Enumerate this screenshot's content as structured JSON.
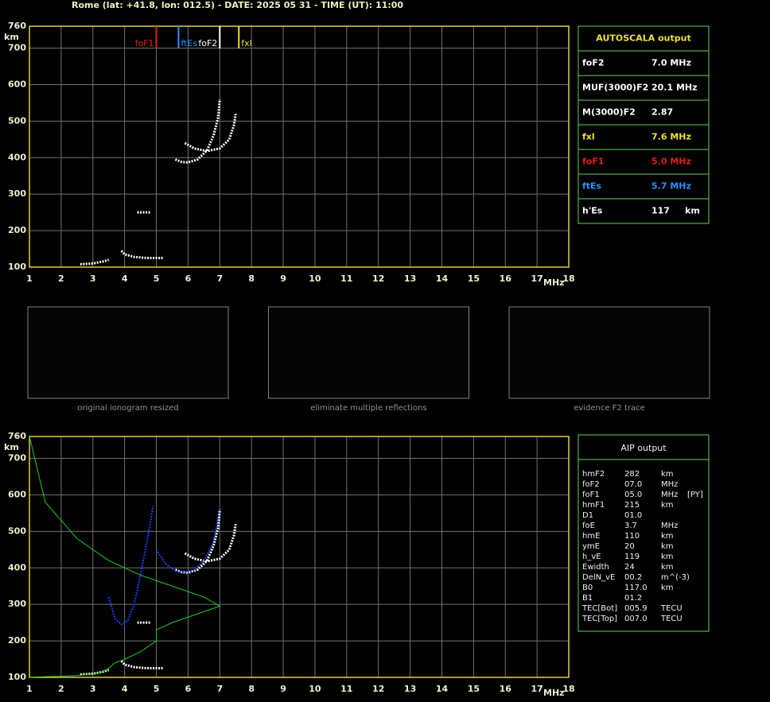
{
  "header": "Rome (lat: +41.8, lon: 012.5) - DATE: 2025 05 31 - TIME (UT): 11:00",
  "chart_data": [
    {
      "type": "ionogram",
      "xlabel": "MHz",
      "ylabel": "km",
      "xlim": [
        1,
        18
      ],
      "ylim": [
        100,
        760
      ],
      "xticks": [
        1,
        2,
        3,
        4,
        5,
        6,
        7,
        8,
        9,
        10,
        11,
        12,
        13,
        14,
        15,
        16,
        17,
        18
      ],
      "yticks": [
        100,
        200,
        300,
        400,
        500,
        600,
        700,
        760
      ],
      "grid": true,
      "markers": [
        {
          "name": "foF1",
          "value": 5.0,
          "color": "#e02020"
        },
        {
          "name": "ftEs",
          "value": 5.7,
          "color": "#2f8fff"
        },
        {
          "name": "foF2",
          "value": 7.0,
          "color": "#ffffff"
        },
        {
          "name": "fxl",
          "value": 7.6,
          "color": "#f0e030"
        }
      ],
      "series": [
        {
          "color": "#ffffff",
          "x": [
            2.6,
            3.0,
            3.3,
            3.5
          ],
          "values": [
            108,
            110,
            115,
            120
          ]
        },
        {
          "color": "#ffffff",
          "x": [
            3.9,
            4.0,
            4.3,
            4.7,
            5.2
          ],
          "values": [
            145,
            135,
            128,
            125,
            125
          ]
        },
        {
          "color": "#ffffff",
          "x": [
            4.4,
            4.8
          ],
          "values": [
            250,
            250
          ]
        },
        {
          "color": "#ffffff",
          "x": [
            5.6,
            5.8,
            6.0,
            6.3,
            6.6,
            6.8,
            6.95,
            7.0
          ],
          "values": [
            395,
            388,
            387,
            395,
            420,
            460,
            510,
            560
          ]
        },
        {
          "color": "#ffffff",
          "x": [
            5.9,
            6.2,
            6.6,
            7.0,
            7.3,
            7.45,
            7.5
          ],
          "values": [
            440,
            425,
            418,
            425,
            450,
            490,
            520
          ]
        }
      ]
    },
    {
      "type": "ionogram",
      "xlabel": "MHz",
      "ylabel": "km",
      "xlim": [
        1,
        18
      ],
      "ylim": [
        100,
        760
      ],
      "xticks": [
        1,
        2,
        3,
        4,
        5,
        6,
        7,
        8,
        9,
        10,
        11,
        12,
        13,
        14,
        15,
        16,
        17,
        18
      ],
      "yticks": [
        100,
        200,
        300,
        400,
        500,
        600,
        700,
        760
      ],
      "grid": true,
      "series": [
        {
          "color": "#ffffff",
          "x": [
            2.6,
            3.0,
            3.3,
            3.5
          ],
          "values": [
            108,
            110,
            115,
            120
          ]
        },
        {
          "color": "#ffffff",
          "x": [
            3.9,
            4.0,
            4.3,
            4.7,
            5.2
          ],
          "values": [
            145,
            135,
            128,
            125,
            125
          ]
        },
        {
          "color": "#ffffff",
          "x": [
            4.4,
            4.8
          ],
          "values": [
            250,
            250
          ]
        },
        {
          "color": "#ffffff",
          "x": [
            5.6,
            5.8,
            6.0,
            6.3,
            6.6,
            6.8,
            6.95,
            7.0
          ],
          "values": [
            395,
            388,
            387,
            395,
            420,
            460,
            510,
            560
          ]
        },
        {
          "color": "#ffffff",
          "x": [
            5.9,
            6.2,
            6.6,
            7.0,
            7.3,
            7.45,
            7.5
          ],
          "values": [
            440,
            425,
            418,
            425,
            450,
            490,
            520
          ]
        },
        {
          "color": "#2040ff",
          "x": [
            3.5,
            3.7,
            3.9,
            4.1,
            4.3,
            4.5,
            4.7,
            4.9
          ],
          "values": [
            320,
            260,
            245,
            255,
            300,
            380,
            470,
            570
          ]
        },
        {
          "color": "#2040ff",
          "x": [
            5.0,
            5.3,
            5.6,
            5.9,
            6.2,
            6.5,
            6.8,
            7.0
          ],
          "values": [
            450,
            410,
            392,
            387,
            395,
            420,
            470,
            560
          ]
        },
        {
          "color": "#20d020",
          "x": [
            1.0,
            1.5,
            2.0,
            2.5,
            3.0,
            3.3,
            3.5,
            3.7,
            4.0,
            4.5,
            5.0,
            5.0,
            5.5,
            6.0,
            6.5,
            6.9,
            7.0,
            6.5,
            5.5,
            4.5,
            3.5,
            2.5,
            1.5,
            1.0
          ],
          "values": [
            100,
            102,
            103,
            105,
            110,
            115,
            125,
            140,
            150,
            170,
            200,
            230,
            250,
            265,
            280,
            292,
            295,
            320,
            350,
            380,
            420,
            480,
            580,
            760
          ]
        }
      ]
    }
  ],
  "autoscala": {
    "title": "AUTOSCALA output",
    "rows": [
      {
        "name": "foF2",
        "value": "7.0 MHz",
        "color": "#ffffff"
      },
      {
        "name": "MUF(3000)F2",
        "value": "20.1 MHz",
        "color": "#ffffff"
      },
      {
        "name": "M(3000)F2",
        "value": "2.87",
        "color": "#ffffff"
      },
      {
        "name": "fxl",
        "value": "7.6 MHz",
        "color": "#f0e030"
      },
      {
        "name": "foF1",
        "value": "5.0 MHz",
        "color": "#e02020"
      },
      {
        "name": "ftEs",
        "value": "5.7 MHz",
        "color": "#2f8fff"
      },
      {
        "name": "h'Es",
        "value": "117     km",
        "color": "#ffffff"
      }
    ]
  },
  "thumbnails": [
    "original ionogram resized",
    "eliminate multiple reflections",
    "evidence F2 trace"
  ],
  "aip": {
    "title": "AIP output",
    "rows": [
      [
        "hmF2",
        "282",
        "km"
      ],
      [
        "foF2",
        "07.0",
        "MHz"
      ],
      [
        "foF1",
        "05.0",
        "MHz",
        "[PY]"
      ],
      [
        "hmF1",
        "215",
        "km"
      ],
      [
        "D1",
        "01.0"
      ],
      [
        "foE",
        "3.7",
        "MHz"
      ],
      [
        "hmE",
        "110",
        "km"
      ],
      [
        "ymE",
        "20",
        "km"
      ],
      [
        "h_vE",
        "119",
        "km"
      ],
      [
        "Ewidth",
        "24",
        "km"
      ],
      [
        "DelN_vE",
        "00.2",
        "m^(-3)"
      ],
      [
        "B0",
        "117.0",
        "km"
      ],
      [
        "B1",
        "01.2"
      ],
      [
        "TEC[Bot]",
        "005.9",
        "TECU"
      ],
      [
        "TEC[Top]",
        "007.0",
        "TECU"
      ]
    ]
  }
}
